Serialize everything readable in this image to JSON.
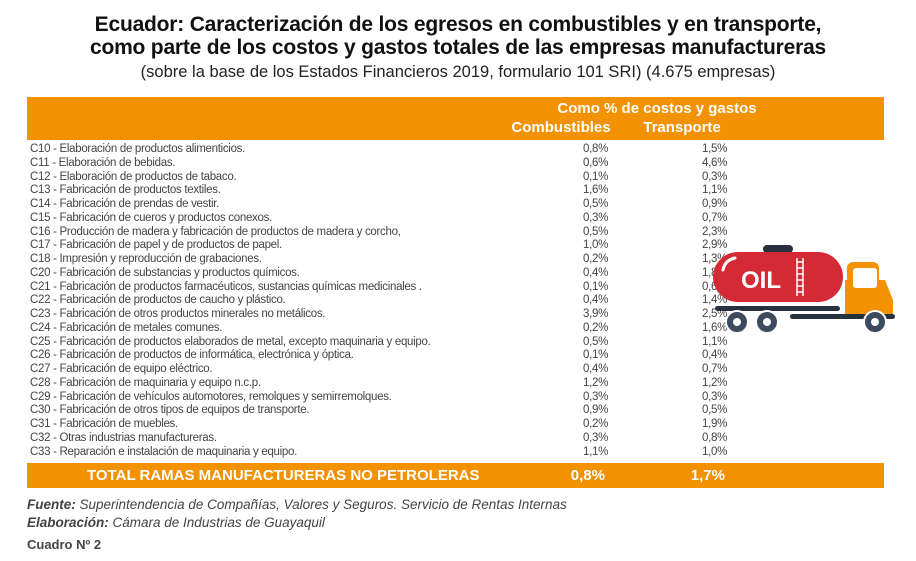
{
  "title": {
    "line1": "Ecuador: Caracterización de los egresos en combustibles y en transporte,",
    "line2": "como parte de los costos y gastos totales de las empresas manufactureras",
    "subtitle": "(sobre la base de los Estados Financieros 2019, formulario 101 SRI) (4.675 empresas)"
  },
  "header": {
    "group": "Como % de costos y gastos",
    "col1": "Combustibles",
    "col2": "Transporte"
  },
  "rows": [
    {
      "label": "C10 - Elaboración de productos alimenticios.",
      "combustibles": "0,8%",
      "transporte": "1,5%"
    },
    {
      "label": "C11 - Elaboración de bebidas.",
      "combustibles": "0,6%",
      "transporte": "4,6%"
    },
    {
      "label": "C12 - Elaboración de productos de tabaco.",
      "combustibles": "0,1%",
      "transporte": "0,3%"
    },
    {
      "label": "C13 - Fabricación de productos textiles.",
      "combustibles": "1,6%",
      "transporte": "1,1%"
    },
    {
      "label": "C14 - Fabricación de prendas de vestir.",
      "combustibles": "0,5%",
      "transporte": "0,9%"
    },
    {
      "label": "C15 - Fabricación de cueros y productos conexos.",
      "combustibles": "0,3%",
      "transporte": "0,7%"
    },
    {
      "label": "C16 - Producción de madera y fabricación de productos de madera y corcho,",
      "combustibles": "0,5%",
      "transporte": "2,3%"
    },
    {
      "label": "C17 - Fabricación de papel y de productos de papel.",
      "combustibles": "1,0%",
      "transporte": "2,9%"
    },
    {
      "label": "C18 - Impresión y reproducción de grabaciones.",
      "combustibles": "0,2%",
      "transporte": "1,3%"
    },
    {
      "label": "C20 - Fabricación de substancias y productos químicos.",
      "combustibles": "0,4%",
      "transporte": "1,8%"
    },
    {
      "label": "C21 - Fabricación de productos farmacéuticos, sustancias químicas medicinales .",
      "combustibles": "0,1%",
      "transporte": "0,6%"
    },
    {
      "label": "C22 - Fabricación de productos de caucho y plástico.",
      "combustibles": "0,4%",
      "transporte": "1,4%"
    },
    {
      "label": "C23 - Fabricación de otros productos minerales no metálicos.",
      "combustibles": "3,9%",
      "transporte": "2,5%"
    },
    {
      "label": "C24 - Fabricación de metales comunes.",
      "combustibles": "0,2%",
      "transporte": "1,6%"
    },
    {
      "label": "C25 - Fabricación de productos elaborados de metal, excepto maquinaria y equipo.",
      "combustibles": "0,5%",
      "transporte": "1,1%"
    },
    {
      "label": "C26 - Fabricación de productos de informática, electrónica y óptica.",
      "combustibles": "0,1%",
      "transporte": "0,4%"
    },
    {
      "label": "C27 - Fabricación de equipo eléctrico.",
      "combustibles": "0,4%",
      "transporte": "0,7%"
    },
    {
      "label": "C28 - Fabricación de maquinaria y equipo n.c.p.",
      "combustibles": "1,2%",
      "transporte": "1,2%"
    },
    {
      "label": "C29 - Fabricación de vehículos automotores, remolques y semirremolques.",
      "combustibles": "0,3%",
      "transporte": "0,3%"
    },
    {
      "label": "C30 - Fabricación de otros tipos de equipos de transporte.",
      "combustibles": "0,9%",
      "transporte": "0,5%"
    },
    {
      "label": "C31 - Fabricación de muebles.",
      "combustibles": "0,2%",
      "transporte": "1,9%"
    },
    {
      "label": "C32 - Otras industrias manufactureras.",
      "combustibles": "0,3%",
      "transporte": "0,8%"
    },
    {
      "label": "C33 - Reparación e instalación de maquinaria y equipo.",
      "combustibles": "1,1%",
      "transporte": "1,0%"
    }
  ],
  "total": {
    "label": "TOTAL RAMAS MANUFACTURERAS NO PETROLERAS",
    "combustibles": "0,8%",
    "transporte": "1,7%"
  },
  "footer": {
    "fuente_label": "Fuente:",
    "fuente": " Superintendencia de Compañías, Valores y Seguros. Servicio de Rentas Internas",
    "elab_label": "Elaboración:",
    "elab": " Cámara de Industrias de Guayaquil",
    "cuadro": "Cuadro Nº 2"
  },
  "truck": {
    "tank_text": "OIL"
  },
  "colors": {
    "accent": "#f29200",
    "tank": "#d42a35",
    "wheels": "#3d4a5f"
  }
}
